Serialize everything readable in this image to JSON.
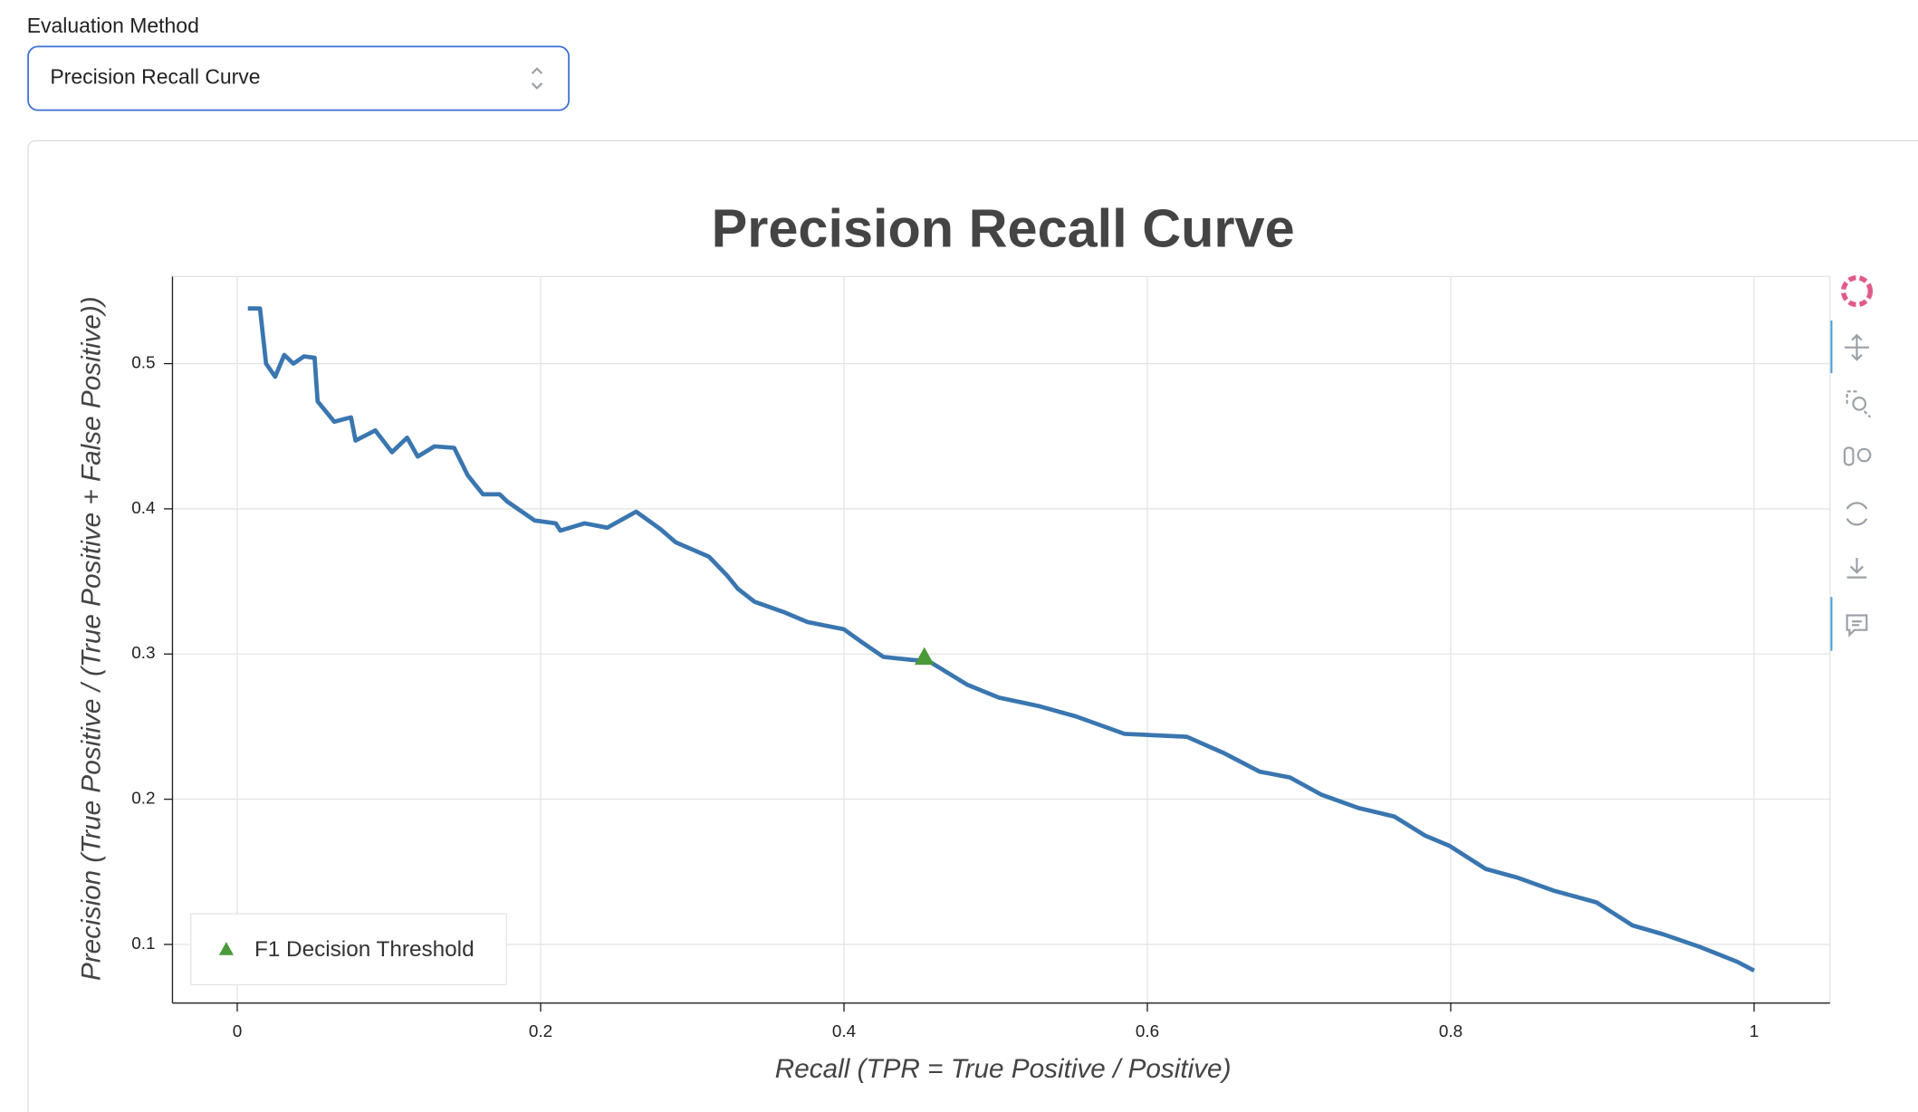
{
  "form": {
    "label": "Evaluation Method",
    "selected": "Precision Recall Curve"
  },
  "chart_data": {
    "type": "line",
    "title": "Precision Recall Curve",
    "xlabel": "Recall (TPR = True Positive / Positive)",
    "ylabel": "Precision (True Positive / (True Positive + False Positive))",
    "color": "#3a76b0",
    "x": [
      0.007,
      0.015,
      0.019,
      0.025,
      0.031,
      0.037,
      0.044,
      0.051,
      0.053,
      0.064,
      0.075,
      0.078,
      0.091,
      0.102,
      0.112,
      0.119,
      0.13,
      0.143,
      0.152,
      0.162,
      0.173,
      0.178,
      0.196,
      0.21,
      0.213,
      0.229,
      0.244,
      0.263,
      0.279,
      0.289,
      0.311,
      0.323,
      0.33,
      0.341,
      0.36,
      0.376,
      0.4,
      0.412,
      0.426,
      0.444,
      0.456,
      0.481,
      0.502,
      0.529,
      0.553,
      0.585,
      0.626,
      0.65,
      0.674,
      0.694,
      0.715,
      0.739,
      0.763,
      0.783,
      0.799,
      0.823,
      0.844,
      0.868,
      0.896,
      0.92,
      0.94,
      0.965,
      0.989,
      1.0
    ],
    "values": [
      0.538,
      0.538,
      0.5,
      0.491,
      0.506,
      0.5,
      0.505,
      0.504,
      0.474,
      0.46,
      0.463,
      0.447,
      0.454,
      0.439,
      0.449,
      0.436,
      0.443,
      0.442,
      0.423,
      0.41,
      0.41,
      0.405,
      0.392,
      0.39,
      0.385,
      0.39,
      0.387,
      0.398,
      0.386,
      0.377,
      0.367,
      0.354,
      0.345,
      0.336,
      0.329,
      0.322,
      0.317,
      0.308,
      0.298,
      0.296,
      0.295,
      0.279,
      0.27,
      0.264,
      0.257,
      0.245,
      0.243,
      0.232,
      0.219,
      0.215,
      0.203,
      0.194,
      0.188,
      0.175,
      0.168,
      0.152,
      0.146,
      0.137,
      0.129,
      0.113,
      0.107,
      0.098,
      0.088,
      0.082
    ],
    "marker": {
      "name": "F1 Decision Threshold",
      "x": 0.453,
      "y": 0.298,
      "color": "#4a9a3a"
    },
    "xlim": [
      -0.0427,
      1.05
    ],
    "ylim": [
      0.0596,
      0.56
    ],
    "xticks": [
      0,
      0.2,
      0.4,
      0.6,
      0.8,
      1
    ],
    "yticks": [
      0.1,
      0.2,
      0.3,
      0.4,
      0.5
    ],
    "grid": true,
    "legend": "lower left"
  }
}
